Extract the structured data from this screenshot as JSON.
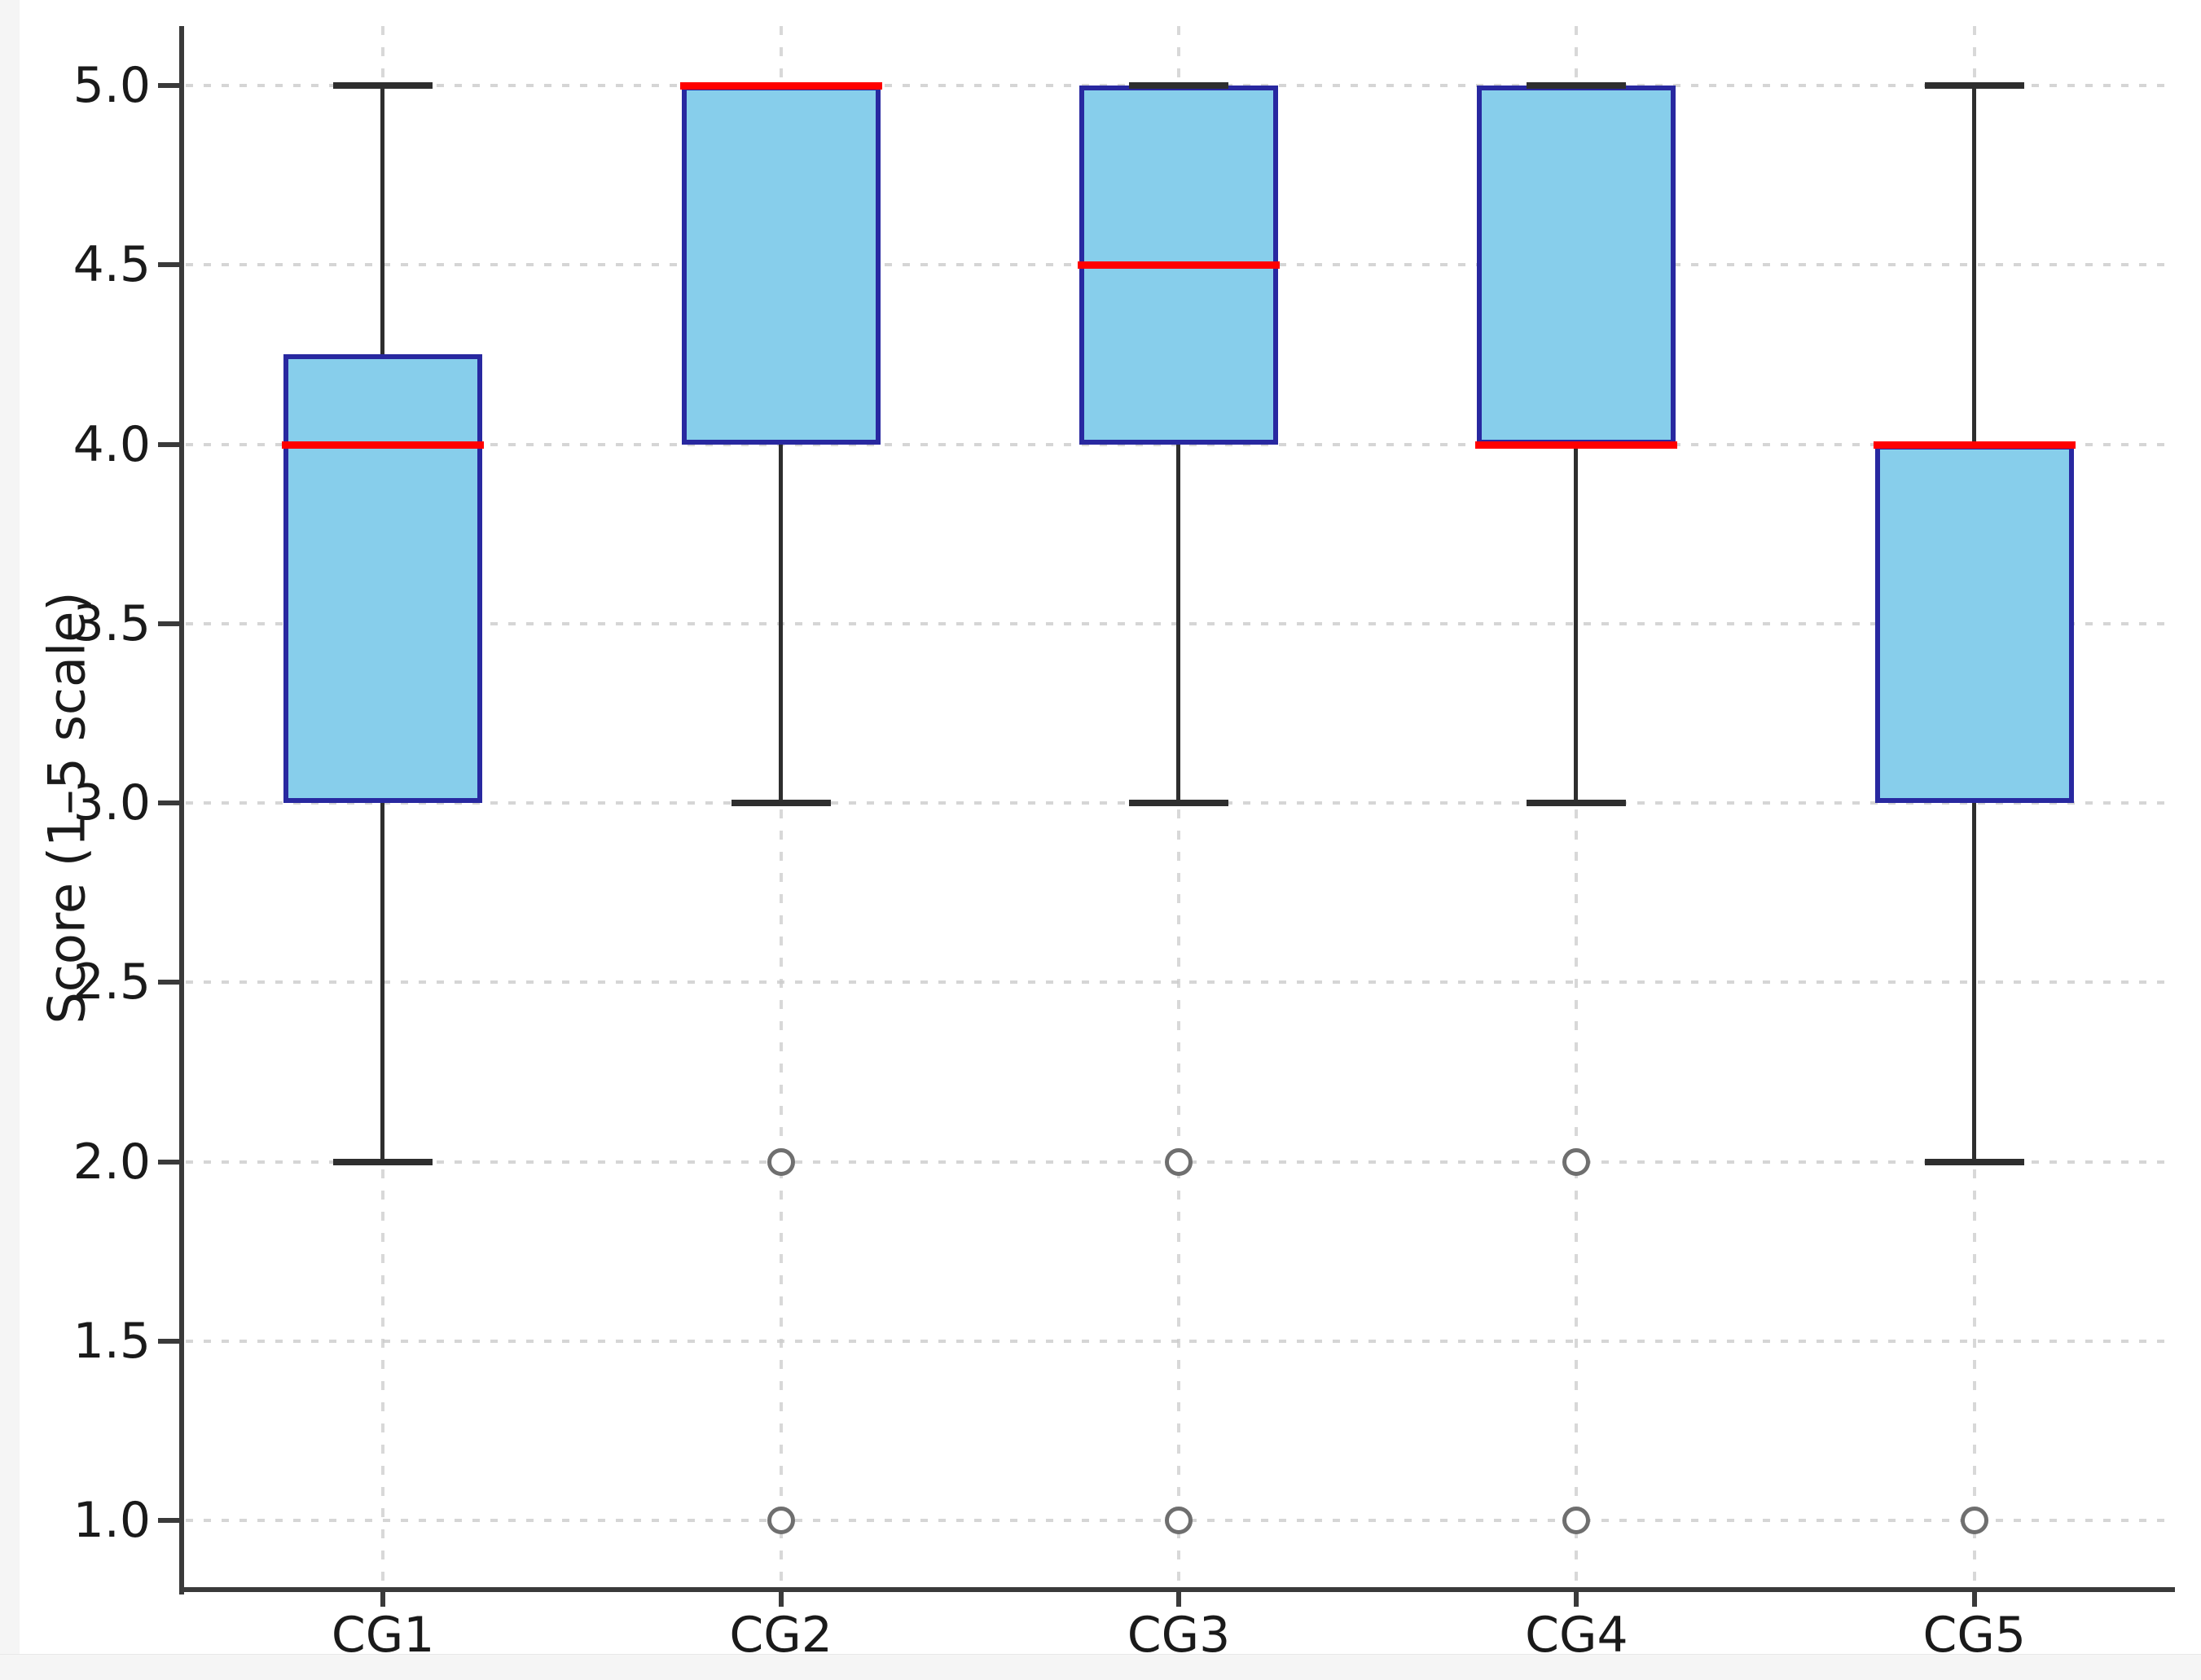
{
  "figure": {
    "background": "#ffffff",
    "margin_strip_color": "#f5f5f5"
  },
  "chart_data": {
    "type": "box",
    "title": "",
    "xlabel": "",
    "ylabel": "Score (1–5 scale)",
    "categories": [
      "CG1",
      "CG2",
      "CG3",
      "CG4",
      "CG5"
    ],
    "ytick_labels": [
      "1.0",
      "1.5",
      "2.0",
      "2.5",
      "3.0",
      "3.5",
      "4.0",
      "4.5",
      "5.0"
    ],
    "ytick_values": [
      1.0,
      1.5,
      2.0,
      2.5,
      3.0,
      3.5,
      4.0,
      4.5,
      5.0
    ],
    "ylim": [
      0.8,
      5.17
    ],
    "grid": true,
    "legend": false,
    "series": [
      {
        "name": "CG1",
        "whisker_low": 2.0,
        "q1": 3.0,
        "median": 4.0,
        "q3": 4.25,
        "whisker_high": 5.0,
        "outliers": []
      },
      {
        "name": "CG2",
        "whisker_low": 3.0,
        "q1": 4.0,
        "median": 5.0,
        "q3": 5.0,
        "whisker_high": 5.0,
        "outliers": [
          2.0,
          1.0
        ]
      },
      {
        "name": "CG3",
        "whisker_low": 3.0,
        "q1": 4.0,
        "median": 4.5,
        "q3": 5.0,
        "whisker_high": 5.0,
        "outliers": [
          2.0,
          1.0
        ]
      },
      {
        "name": "CG4",
        "whisker_low": 3.0,
        "q1": 4.0,
        "median": 4.0,
        "q3": 5.0,
        "whisker_high": 5.0,
        "outliers": [
          2.0,
          1.0
        ]
      },
      {
        "name": "CG5",
        "whisker_low": 2.0,
        "q1": 3.0,
        "median": 4.0,
        "q3": 4.0,
        "whisker_high": 5.0,
        "outliers": [
          1.0
        ]
      }
    ],
    "colors": {
      "box_fill": "#87CEEB",
      "box_edge": "#2828A0",
      "median": "#FF0000",
      "whisker": "#2E2E2E",
      "cap": "#2E2E2E",
      "grid": "#CBCBCB",
      "spine": "#3A3A3A",
      "outlier_edge": "#6F6F6F",
      "tick_label": "#1A1A1A"
    }
  }
}
